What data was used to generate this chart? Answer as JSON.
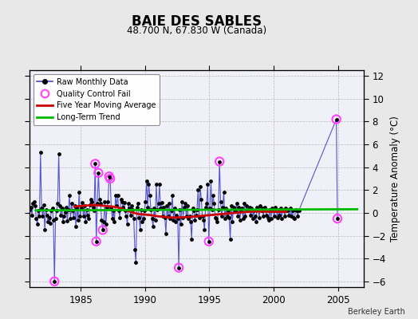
{
  "title": "BAIE DES SABLES",
  "subtitle": "48.700 N, 67.830 W (Canada)",
  "ylabel": "Temperature Anomaly (°C)",
  "credit": "Berkeley Earth",
  "ylim": [
    -6.5,
    12.5
  ],
  "xlim": [
    1981.0,
    2007.0
  ],
  "yticks": [
    -6,
    -4,
    -2,
    0,
    2,
    4,
    6,
    8,
    10,
    12
  ],
  "xticks": [
    1985,
    1990,
    1995,
    2000,
    2005
  ],
  "bg_color": "#e8e8e8",
  "plot_bg_color": "#f0f0f8",
  "raw_color": "#4444cc",
  "dot_color": "#000000",
  "ma_color": "#cc0000",
  "trend_color": "#00bb00",
  "qc_color": "#ff44ff",
  "raw_data": [
    [
      1981.042,
      0.3
    ],
    [
      1981.125,
      0.5
    ],
    [
      1981.208,
      -0.2
    ],
    [
      1981.292,
      0.8
    ],
    [
      1981.375,
      1.0
    ],
    [
      1981.458,
      0.6
    ],
    [
      1981.542,
      -0.5
    ],
    [
      1981.625,
      -1.0
    ],
    [
      1981.708,
      0.2
    ],
    [
      1981.792,
      -0.3
    ],
    [
      1981.875,
      5.3
    ],
    [
      1981.958,
      0.4
    ],
    [
      1982.042,
      -0.3
    ],
    [
      1982.125,
      0.7
    ],
    [
      1982.208,
      -1.5
    ],
    [
      1982.292,
      0.3
    ],
    [
      1982.375,
      -0.2
    ],
    [
      1982.458,
      -0.8
    ],
    [
      1982.542,
      -0.4
    ],
    [
      1982.625,
      -0.9
    ],
    [
      1982.708,
      0.2
    ],
    [
      1982.792,
      0.4
    ],
    [
      1982.875,
      -0.6
    ],
    [
      1982.958,
      -6.0
    ],
    [
      1983.042,
      -0.5
    ],
    [
      1983.125,
      0.2
    ],
    [
      1983.208,
      0.8
    ],
    [
      1983.292,
      5.2
    ],
    [
      1983.375,
      0.6
    ],
    [
      1983.458,
      -0.2
    ],
    [
      1983.542,
      0.4
    ],
    [
      1983.625,
      -0.8
    ],
    [
      1983.708,
      -0.3
    ],
    [
      1983.792,
      0.1
    ],
    [
      1983.875,
      0.5
    ],
    [
      1983.958,
      -0.7
    ],
    [
      1984.042,
      0.3
    ],
    [
      1984.125,
      1.5
    ],
    [
      1984.208,
      -0.5
    ],
    [
      1984.292,
      0.8
    ],
    [
      1984.375,
      0.2
    ],
    [
      1984.458,
      -0.4
    ],
    [
      1984.542,
      0.6
    ],
    [
      1984.625,
      -1.2
    ],
    [
      1984.708,
      0.4
    ],
    [
      1984.792,
      -0.6
    ],
    [
      1984.875,
      1.8
    ],
    [
      1984.958,
      -0.3
    ],
    [
      1985.042,
      0.4
    ],
    [
      1985.125,
      0.9
    ],
    [
      1985.208,
      -0.3
    ],
    [
      1985.292,
      0.6
    ],
    [
      1985.375,
      -0.8
    ],
    [
      1985.458,
      0.3
    ],
    [
      1985.542,
      -0.2
    ],
    [
      1985.625,
      -0.5
    ],
    [
      1985.708,
      0.7
    ],
    [
      1985.792,
      1.2
    ],
    [
      1985.875,
      1.0
    ],
    [
      1985.958,
      0.5
    ],
    [
      1986.042,
      0.2
    ],
    [
      1986.125,
      4.3
    ],
    [
      1986.208,
      -2.5
    ],
    [
      1986.292,
      0.8
    ],
    [
      1986.375,
      3.5
    ],
    [
      1986.458,
      1.2
    ],
    [
      1986.542,
      0.8
    ],
    [
      1986.625,
      -0.6
    ],
    [
      1986.708,
      -1.5
    ],
    [
      1986.792,
      -0.8
    ],
    [
      1986.875,
      1.0
    ],
    [
      1986.958,
      -1.0
    ],
    [
      1987.042,
      0.5
    ],
    [
      1987.125,
      1.0
    ],
    [
      1987.208,
      3.2
    ],
    [
      1987.292,
      3.0
    ],
    [
      1987.375,
      0.4
    ],
    [
      1987.458,
      -0.5
    ],
    [
      1987.542,
      0.2
    ],
    [
      1987.625,
      -0.8
    ],
    [
      1987.708,
      1.5
    ],
    [
      1987.792,
      0.6
    ],
    [
      1987.875,
      1.5
    ],
    [
      1987.958,
      0.2
    ],
    [
      1988.042,
      -0.4
    ],
    [
      1988.125,
      1.2
    ],
    [
      1988.208,
      1.0
    ],
    [
      1988.292,
      0.5
    ],
    [
      1988.375,
      0.9
    ],
    [
      1988.458,
      0.2
    ],
    [
      1988.542,
      -0.3
    ],
    [
      1988.625,
      -1.0
    ],
    [
      1988.708,
      0.8
    ],
    [
      1988.792,
      0.4
    ],
    [
      1988.875,
      -0.2
    ],
    [
      1988.958,
      0.6
    ],
    [
      1989.042,
      0.3
    ],
    [
      1989.125,
      -0.5
    ],
    [
      1989.208,
      -3.2
    ],
    [
      1989.292,
      -4.3
    ],
    [
      1989.375,
      0.5
    ],
    [
      1989.458,
      0.8
    ],
    [
      1989.542,
      -0.4
    ],
    [
      1989.625,
      -1.5
    ],
    [
      1989.708,
      0.3
    ],
    [
      1989.792,
      -0.8
    ],
    [
      1989.875,
      -0.5
    ],
    [
      1989.958,
      0.2
    ],
    [
      1990.042,
      1.0
    ],
    [
      1990.125,
      2.8
    ],
    [
      1990.208,
      0.5
    ],
    [
      1990.292,
      2.5
    ],
    [
      1990.375,
      1.5
    ],
    [
      1990.458,
      0.3
    ],
    [
      1990.542,
      -0.5
    ],
    [
      1990.625,
      -1.2
    ],
    [
      1990.708,
      0.4
    ],
    [
      1990.792,
      -0.6
    ],
    [
      1990.875,
      2.5
    ],
    [
      1990.958,
      0.3
    ],
    [
      1991.042,
      0.8
    ],
    [
      1991.125,
      2.5
    ],
    [
      1991.208,
      0.4
    ],
    [
      1991.292,
      0.9
    ],
    [
      1991.375,
      -0.3
    ],
    [
      1991.458,
      0.5
    ],
    [
      1991.542,
      -0.4
    ],
    [
      1991.625,
      -1.8
    ],
    [
      1991.708,
      0.6
    ],
    [
      1991.792,
      -0.3
    ],
    [
      1991.875,
      0.8
    ],
    [
      1991.958,
      -0.5
    ],
    [
      1992.042,
      0.2
    ],
    [
      1992.125,
      1.5
    ],
    [
      1992.208,
      -0.6
    ],
    [
      1992.292,
      0.4
    ],
    [
      1992.375,
      -0.8
    ],
    [
      1992.458,
      -0.2
    ],
    [
      1992.542,
      -0.5
    ],
    [
      1992.625,
      -4.8
    ],
    [
      1992.708,
      0.3
    ],
    [
      1992.792,
      -1.0
    ],
    [
      1992.875,
      1.0
    ],
    [
      1992.958,
      -0.4
    ],
    [
      1993.042,
      0.5
    ],
    [
      1993.125,
      0.8
    ],
    [
      1993.208,
      -0.3
    ],
    [
      1993.292,
      0.6
    ],
    [
      1993.375,
      -0.5
    ],
    [
      1993.458,
      -0.3
    ],
    [
      1993.542,
      -0.8
    ],
    [
      1993.625,
      -2.3
    ],
    [
      1993.708,
      0.4
    ],
    [
      1993.792,
      0.2
    ],
    [
      1993.875,
      -0.6
    ],
    [
      1993.958,
      -0.2
    ],
    [
      1994.042,
      0.3
    ],
    [
      1994.125,
      2.0
    ],
    [
      1994.208,
      -0.4
    ],
    [
      1994.292,
      2.3
    ],
    [
      1994.375,
      1.2
    ],
    [
      1994.458,
      -0.3
    ],
    [
      1994.542,
      -0.6
    ],
    [
      1994.625,
      -1.5
    ],
    [
      1994.708,
      0.5
    ],
    [
      1994.792,
      0.8
    ],
    [
      1994.875,
      2.5
    ],
    [
      1994.958,
      -2.5
    ],
    [
      1995.042,
      0.4
    ],
    [
      1995.125,
      2.8
    ],
    [
      1995.208,
      0.3
    ],
    [
      1995.292,
      1.5
    ],
    [
      1995.375,
      0.8
    ],
    [
      1995.458,
      -0.4
    ],
    [
      1995.542,
      -0.5
    ],
    [
      1995.625,
      -0.8
    ],
    [
      1995.708,
      0.3
    ],
    [
      1995.792,
      4.5
    ],
    [
      1995.875,
      1.0
    ],
    [
      1995.958,
      -0.3
    ],
    [
      1996.042,
      0.5
    ],
    [
      1996.125,
      1.8
    ],
    [
      1996.208,
      -0.5
    ],
    [
      1996.292,
      0.4
    ],
    [
      1996.375,
      -0.3
    ],
    [
      1996.458,
      0.2
    ],
    [
      1996.542,
      -0.4
    ],
    [
      1996.625,
      -2.3
    ],
    [
      1996.708,
      0.6
    ],
    [
      1996.792,
      -0.8
    ],
    [
      1996.875,
      0.5
    ],
    [
      1996.958,
      0.3
    ],
    [
      1997.042,
      0.2
    ],
    [
      1997.125,
      0.8
    ],
    [
      1997.208,
      -0.3
    ],
    [
      1997.292,
      0.5
    ],
    [
      1997.375,
      -0.6
    ],
    [
      1997.458,
      0.3
    ],
    [
      1997.542,
      0.4
    ],
    [
      1997.625,
      -0.5
    ],
    [
      1997.708,
      0.8
    ],
    [
      1997.792,
      -0.3
    ],
    [
      1997.875,
      0.6
    ],
    [
      1997.958,
      0.2
    ],
    [
      1998.042,
      0.3
    ],
    [
      1998.125,
      0.5
    ],
    [
      1998.208,
      -0.2
    ],
    [
      1998.292,
      0.4
    ],
    [
      1998.375,
      -0.5
    ],
    [
      1998.458,
      0.2
    ],
    [
      1998.542,
      -0.3
    ],
    [
      1998.625,
      -0.8
    ],
    [
      1998.708,
      0.5
    ],
    [
      1998.792,
      0.3
    ],
    [
      1998.875,
      -0.4
    ],
    [
      1998.958,
      0.6
    ],
    [
      1999.042,
      0.2
    ],
    [
      1999.125,
      0.4
    ],
    [
      1999.208,
      -0.3
    ],
    [
      1999.292,
      0.5
    ],
    [
      1999.375,
      0.3
    ],
    [
      1999.458,
      -0.2
    ],
    [
      1999.542,
      -0.4
    ],
    [
      1999.625,
      -0.6
    ],
    [
      1999.708,
      0.3
    ],
    [
      1999.792,
      -0.5
    ],
    [
      1999.875,
      0.4
    ],
    [
      1999.958,
      0.2
    ],
    [
      2000.042,
      -0.3
    ],
    [
      2000.125,
      0.5
    ],
    [
      2000.208,
      0.2
    ],
    [
      2000.292,
      -0.4
    ],
    [
      2000.375,
      0.3
    ],
    [
      2000.458,
      -0.2
    ],
    [
      2000.542,
      0.4
    ],
    [
      2000.625,
      -0.5
    ],
    [
      2000.708,
      0.3
    ],
    [
      2000.792,
      0.2
    ],
    [
      2000.875,
      -0.3
    ],
    [
      2000.958,
      0.4
    ],
    [
      2001.042,
      0.2
    ],
    [
      2001.125,
      0.3
    ],
    [
      2001.208,
      -0.2
    ],
    [
      2001.292,
      0.4
    ],
    [
      2001.375,
      -0.3
    ],
    [
      2001.458,
      0.2
    ],
    [
      2001.542,
      -0.4
    ],
    [
      2001.625,
      -0.5
    ],
    [
      2001.708,
      0.3
    ],
    [
      2001.792,
      0.2
    ],
    [
      2001.875,
      -0.3
    ],
    [
      2001.958,
      0.2
    ],
    [
      2004.875,
      8.2
    ],
    [
      2004.958,
      -0.5
    ]
  ],
  "qc_fail_points": [
    [
      1982.958,
      -6.0
    ],
    [
      1986.125,
      4.3
    ],
    [
      1986.375,
      3.5
    ],
    [
      1987.208,
      3.2
    ],
    [
      1987.292,
      3.0
    ],
    [
      1986.208,
      -2.5
    ],
    [
      1986.708,
      -1.5
    ],
    [
      1992.625,
      -4.8
    ],
    [
      1994.958,
      -2.5
    ],
    [
      1995.792,
      4.5
    ],
    [
      2004.875,
      8.2
    ],
    [
      2004.958,
      -0.5
    ]
  ],
  "moving_avg": [
    [
      1984.5,
      0.55
    ],
    [
      1985.0,
      0.6
    ],
    [
      1985.5,
      0.65
    ],
    [
      1986.0,
      0.7
    ],
    [
      1986.5,
      0.65
    ],
    [
      1987.0,
      0.6
    ],
    [
      1987.5,
      0.55
    ],
    [
      1988.0,
      0.45
    ],
    [
      1988.5,
      0.25
    ],
    [
      1989.0,
      0.05
    ],
    [
      1989.5,
      -0.1
    ],
    [
      1990.0,
      -0.15
    ],
    [
      1990.5,
      -0.2
    ],
    [
      1991.0,
      -0.3
    ],
    [
      1991.5,
      -0.35
    ],
    [
      1992.0,
      -0.4
    ],
    [
      1992.5,
      -0.4
    ],
    [
      1993.0,
      -0.38
    ],
    [
      1993.5,
      -0.35
    ],
    [
      1994.0,
      -0.3
    ],
    [
      1994.5,
      -0.25
    ],
    [
      1995.0,
      -0.2
    ],
    [
      1995.5,
      -0.15
    ],
    [
      1996.0,
      -0.1
    ],
    [
      1996.5,
      -0.05
    ],
    [
      1997.0,
      0.0
    ],
    [
      1997.5,
      0.05
    ],
    [
      1998.0,
      0.1
    ],
    [
      1998.5,
      0.12
    ],
    [
      1999.0,
      0.12
    ],
    [
      1999.5,
      0.1
    ],
    [
      2000.0,
      0.1
    ],
    [
      2000.5,
      0.1
    ],
    [
      2001.0,
      0.1
    ]
  ],
  "trend_line": [
    [
      1981.5,
      0.22
    ],
    [
      2006.5,
      0.32
    ]
  ]
}
